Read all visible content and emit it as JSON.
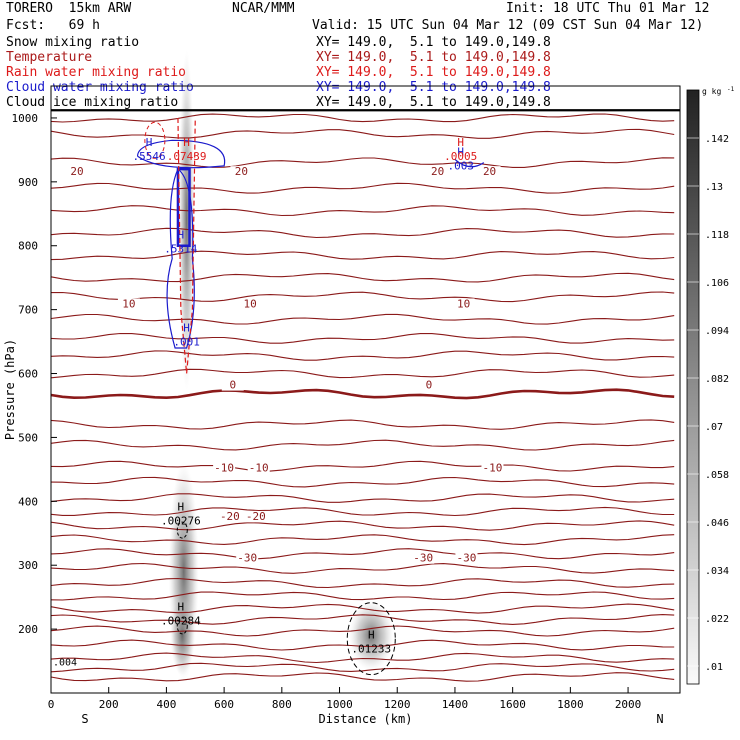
{
  "header": {
    "model": "TORERO  15km ARW",
    "center": "NCAR/MMM",
    "init": "Init: 18 UTC Thu 01 Mar 12",
    "fcst": "Fcst:   69 h",
    "valid": "Valid: 15 UTC Sun 04 Mar 12 (09 CST Sun 04 Mar 12)"
  },
  "legend": [
    {
      "name": "Snow mixing ratio",
      "xy": "XY= 149.0,  5.1 to 149.0,149.8",
      "color": "#000000"
    },
    {
      "name": "Temperature",
      "xy": "XY= 149.0,  5.1 to 149.0,149.8",
      "color": "#aa1a1a"
    },
    {
      "name": "Rain water mixing ratio",
      "xy": "XY= 149.0,  5.1 to 149.0,149.8",
      "color": "#dd1a1a"
    },
    {
      "name": "Cloud water mixing ratio",
      "xy": "XY= 149.0,  5.1 to 149.0,149.8",
      "color": "#1a1acc"
    },
    {
      "name": "Cloud ice mixing ratio",
      "xy": "XY= 149.0,  5.1 to 149.0,149.8",
      "color": "#000000"
    }
  ],
  "chart_data": {
    "type": "cross-section contour",
    "xlabel": "Distance (km)",
    "ylabel": "Pressure (hPa)",
    "xlim": [
      0,
      2180
    ],
    "ylim": [
      1050,
      100
    ],
    "x_ticks": [
      0,
      200,
      400,
      600,
      800,
      1000,
      1200,
      1400,
      1600,
      1800,
      2000
    ],
    "y_ticks": [
      200,
      300,
      400,
      500,
      600,
      700,
      800,
      900,
      1000
    ],
    "axis_ends": {
      "left": "S",
      "right": "N"
    },
    "colorbar": {
      "unit": "g kg",
      "unit_exp": "-1",
      "ticks": [
        ".142",
        ".13",
        ".118",
        ".106",
        ".094",
        ".082",
        ".07",
        ".058",
        ".046",
        ".034",
        ".022",
        ".01"
      ]
    },
    "temperature_contours": [
      {
        "label": "-30",
        "label_x": [
          680,
          1290,
          1440
        ],
        "label_p": 307
      },
      {
        "label": "-20",
        "label_x": [
          620,
          710
        ],
        "label_p": 372
      },
      {
        "label": "-10",
        "label_x": [
          600,
          720,
          1530
        ],
        "label_p": 448
      },
      {
        "label": "0",
        "label_x": [
          630,
          1310
        ],
        "label_p": 578
      },
      {
        "label": "10",
        "label_x": [
          270,
          690,
          1430
        ],
        "label_p": 705
      },
      {
        "label": "20",
        "label_x": [
          90,
          660,
          1340,
          1520
        ],
        "label_p": 912
      }
    ],
    "annotations": [
      {
        "marker": "H",
        "value": ".00284",
        "x": 450,
        "p": 218,
        "color": "#000000"
      },
      {
        "marker": "H",
        "value": ".00276",
        "x": 450,
        "p": 375,
        "color": "#000000"
      },
      {
        "marker": "H",
        "value": ".01233",
        "x": 1110,
        "p": 174,
        "color": "#000000"
      },
      {
        "marker": "H",
        "value": ".001",
        "x": 470,
        "p": 655,
        "color": "#1a1acc"
      },
      {
        "marker": "H",
        "value": ".5314",
        "x": 450,
        "p": 800,
        "color": "#1a1acc"
      },
      {
        "marker": "H",
        "value": ".5546",
        "x": 340,
        "p": 945,
        "color": "#1a1acc"
      },
      {
        "marker": "H",
        "value": ".07439",
        "x": 470,
        "p": 945,
        "color": "#dd1a1a"
      },
      {
        "marker": "H",
        "value": ".003",
        "x": 1420,
        "p": 930,
        "color": "#1a1acc"
      },
      {
        "marker": "H",
        "value": ".0005",
        "x": 1420,
        "p": 945,
        "color": "#dd1a1a"
      }
    ],
    "edge_label": ".004"
  }
}
